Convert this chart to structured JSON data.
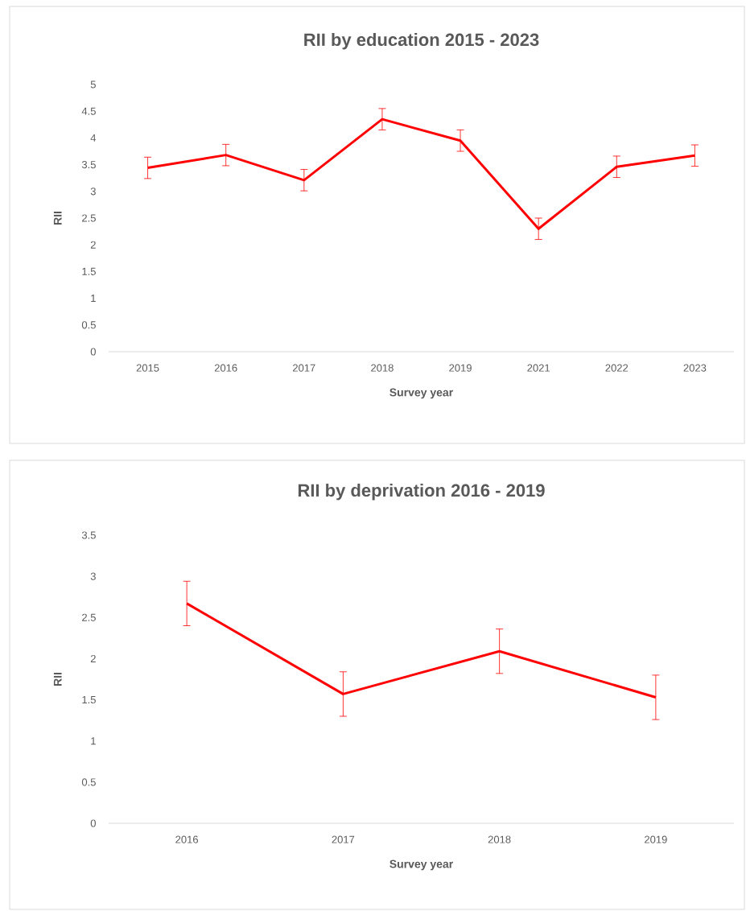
{
  "chart_data": [
    {
      "type": "line",
      "title": "RII by education 2015 - 2023",
      "xlabel": "Survey year",
      "ylabel": "RII",
      "categories": [
        "2015",
        "2016",
        "2017",
        "2018",
        "2019",
        "2021",
        "2022",
        "2023"
      ],
      "values": [
        3.44,
        3.68,
        3.21,
        4.35,
        3.95,
        2.3,
        3.46,
        3.67
      ],
      "errors": [
        0.2,
        0.2,
        0.2,
        0.2,
        0.2,
        0.2,
        0.2,
        0.2
      ],
      "color": "#ff0000",
      "ylim": [
        0,
        5
      ],
      "yticks": [
        0,
        0.5,
        1,
        1.5,
        2,
        2.5,
        3,
        3.5,
        4,
        4.5,
        5
      ]
    },
    {
      "type": "line",
      "title": "RII by deprivation 2016 - 2019",
      "xlabel": "Survey year",
      "ylabel": "RII",
      "categories": [
        "2016",
        "2017",
        "2018",
        "2019"
      ],
      "values": [
        2.67,
        1.57,
        2.09,
        1.53
      ],
      "errors": [
        0.27,
        0.27,
        0.27,
        0.27
      ],
      "color": "#ff0000",
      "ylim": [
        0,
        3.5
      ],
      "yticks": [
        0,
        0.5,
        1,
        1.5,
        2,
        2.5,
        3,
        3.5
      ]
    }
  ]
}
